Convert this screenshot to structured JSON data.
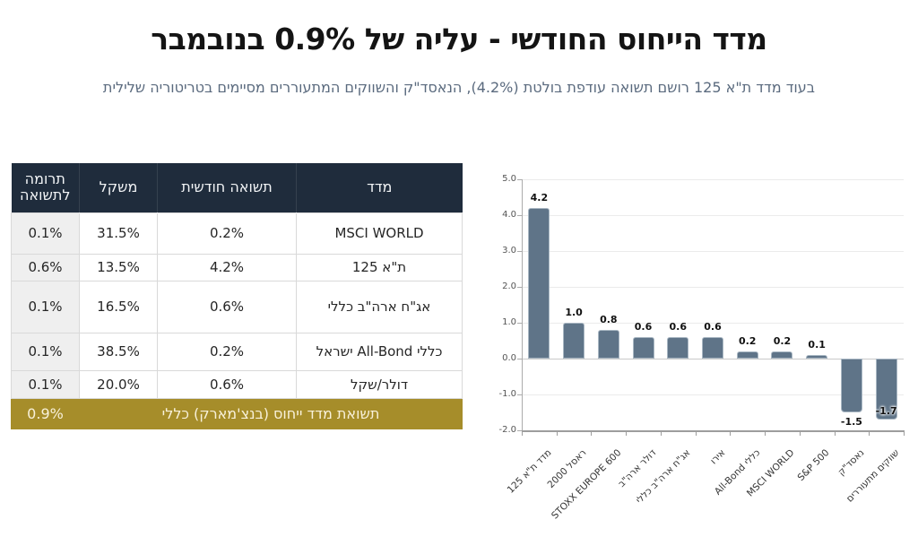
{
  "header": {
    "title": "מדד הייחוס החודשי - עליה של 0.9% בנובמבר",
    "subtitle": "בעוד מדד ת\"א 125 רושם תשואה עודפת בולטת (4.2%), הנאסד\"ק והשווקים המתעוררים מסיימים בטריטוריה שלילית"
  },
  "table": {
    "columns": [
      "מדד",
      "תשואה חודשית",
      "משקל",
      "תרומה לתשואה"
    ],
    "rows": [
      {
        "index": "MSCI WORLD",
        "monthly": "0.2%",
        "weight": "31.5%",
        "contribution": "0.1%"
      },
      {
        "index": "ת\"א 125",
        "monthly": "4.2%",
        "weight": "13.5%",
        "contribution": "0.6%"
      },
      {
        "index": "אג\"ח ארה\"ב כללי",
        "monthly": "0.6%",
        "weight": "16.5%",
        "contribution": "0.1%"
      },
      {
        "index": "כללי All-Bond ישראל",
        "monthly": "0.2%",
        "weight": "38.5%",
        "contribution": "0.1%"
      },
      {
        "index": "דולר/שקל",
        "monthly": "0.6%",
        "weight": "20.0%",
        "contribution": "0.1%"
      }
    ],
    "footer": {
      "label": "תשואת מדד ייחוס (בנצ'מארק) כללי",
      "value": "0.9%"
    }
  },
  "chart_data": {
    "type": "bar",
    "categories": [
      "מדד ת\"א 125",
      "ראסל 2000",
      "STOXX EUROPE 600",
      "דולר ארה\"ב",
      "אג\"ח ארה\"ב כללי",
      "אירו",
      "כללי All-Bond",
      "MSCI WORLD",
      "S&P 500",
      "נאסד\"ק",
      "שווקים מתעוררים"
    ],
    "values": [
      4.2,
      1.0,
      0.8,
      0.6,
      0.6,
      0.6,
      0.2,
      0.2,
      0.1,
      -1.5,
      -1.7
    ],
    "title": "",
    "xlabel": "",
    "ylabel": "",
    "ylim": [
      -2.0,
      5.0
    ],
    "ytick_step": 1.0,
    "ytick_labels": [
      "5.0",
      "4.0",
      "3.0",
      "2.0",
      "1.0",
      "0.0",
      "-1.0",
      "-2.0"
    ],
    "grid": true,
    "legend": false,
    "bar_color": "#5f7488",
    "bar_edge_color": "#a9b7c3",
    "label_color": "#111111",
    "xtick_rotation": 45
  },
  "colors": {
    "header_navy": "#1f2c3c",
    "total_gold": "#a68d2a",
    "contrib_col_bg": "#efefef",
    "subtitle_blue_gray": "#5a6a7e",
    "bar_slate": "#5f7488"
  }
}
